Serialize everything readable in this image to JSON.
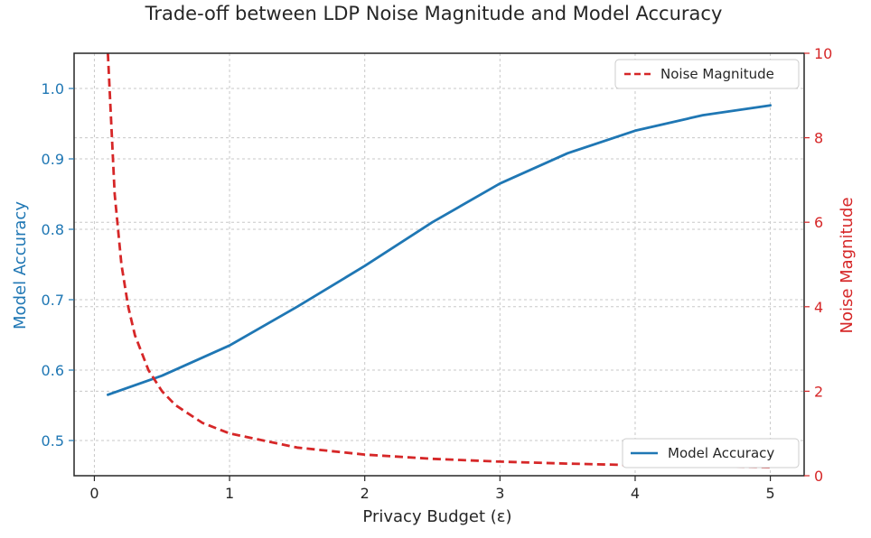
{
  "chart_data": {
    "type": "line",
    "title": "Trade-off between LDP Noise Magnitude and Model Accuracy",
    "xlabel": "Privacy Budget (ε)",
    "xlim": [
      -0.15,
      5.25
    ],
    "xticks": [
      0,
      1,
      2,
      3,
      4,
      5
    ],
    "ylabel_left": "Model Accuracy",
    "ylim_left": [
      0.45,
      1.05
    ],
    "yticks_left": [
      "0.5",
      "0.6",
      "0.7",
      "0.8",
      "0.9",
      "1.0"
    ],
    "ylabel_right": "Noise Magnitude",
    "ylim_right": [
      0,
      10
    ],
    "yticks_right": [
      "0",
      "2",
      "4",
      "6",
      "8",
      "10"
    ],
    "grid": true,
    "series": [
      {
        "name": "Model Accuracy",
        "axis": "left",
        "color": "#1f77b4",
        "style": "solid",
        "legend": "bottom-right",
        "x": [
          0.1,
          0.5,
          1.0,
          1.5,
          2.0,
          2.5,
          3.0,
          3.5,
          4.0,
          4.5,
          5.0
        ],
        "values": [
          0.565,
          0.592,
          0.635,
          0.69,
          0.748,
          0.81,
          0.865,
          0.908,
          0.94,
          0.962,
          0.976
        ]
      },
      {
        "name": "Noise Magnitude",
        "axis": "right",
        "color": "#d62728",
        "style": "dashed",
        "legend": "top-right",
        "x": [
          0.1,
          0.15,
          0.2,
          0.25,
          0.3,
          0.4,
          0.5,
          0.6,
          0.8,
          1.0,
          1.5,
          2.0,
          2.5,
          3.0,
          3.5,
          4.0,
          4.5,
          5.0
        ],
        "values": [
          10.0,
          6.67,
          5.0,
          4.0,
          3.33,
          2.5,
          2.0,
          1.67,
          1.25,
          1.0,
          0.667,
          0.5,
          0.4,
          0.333,
          0.286,
          0.25,
          0.222,
          0.2
        ]
      }
    ]
  }
}
